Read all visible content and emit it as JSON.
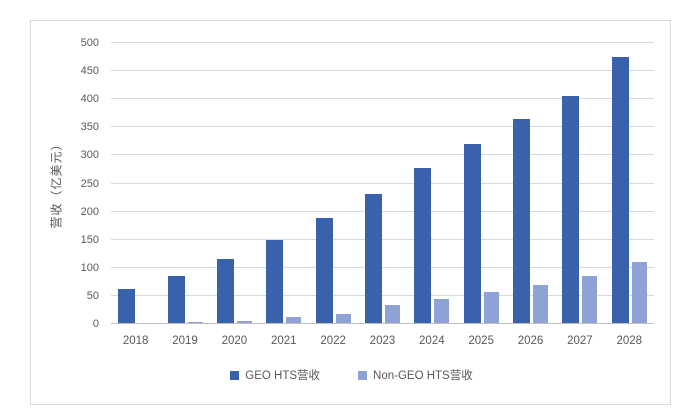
{
  "colors": {
    "geo_bar": "#3a62ac",
    "non_geo_bar": "#8ea2d6",
    "gridline": "#d9d9d9",
    "axis_line": "#bfbfbf",
    "text": "#595959",
    "border": "#d9d9d9",
    "background": "#ffffff"
  },
  "chart_data": {
    "type": "bar",
    "title": "",
    "xlabel": "",
    "ylabel": "营收（亿美元）",
    "categories": [
      "2018",
      "2019",
      "2020",
      "2021",
      "2022",
      "2023",
      "2024",
      "2025",
      "2026",
      "2027",
      "2028"
    ],
    "series": [
      {
        "name": "GEO HTS营收",
        "color": "#3a62ac",
        "values": [
          62,
          85,
          115,
          150,
          188,
          232,
          277,
          320,
          365,
          405,
          475
        ]
      },
      {
        "name": "Non-GEO HTS营收",
        "color": "#8ea2d6",
        "values": [
          2,
          3,
          6,
          12,
          18,
          33,
          45,
          57,
          70,
          85,
          110
        ]
      }
    ],
    "ylim": [
      0,
      500
    ],
    "yticks": [
      0,
      50,
      100,
      150,
      200,
      250,
      300,
      350,
      400,
      450,
      500
    ],
    "grid": true,
    "legend_position": "bottom"
  }
}
